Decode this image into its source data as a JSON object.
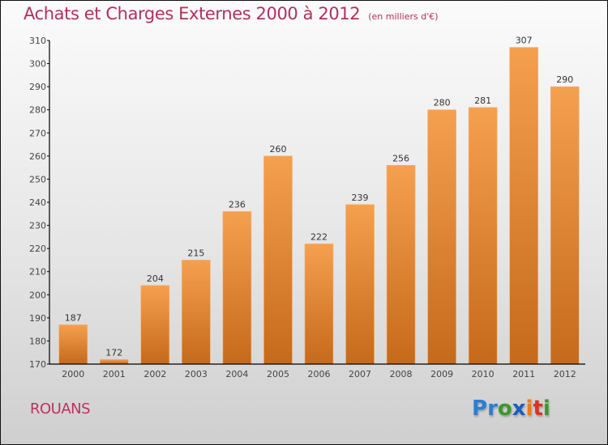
{
  "chart_data": {
    "type": "bar",
    "title": "Achats et Charges Externes 2000 à 2012",
    "subtitle": "(en milliers d'€)",
    "xlabel": "",
    "ylabel": "",
    "categories": [
      "2000",
      "2001",
      "2002",
      "2003",
      "2004",
      "2005",
      "2006",
      "2007",
      "2008",
      "2009",
      "2010",
      "2011",
      "2012"
    ],
    "values": [
      187,
      172,
      204,
      215,
      236,
      260,
      222,
      239,
      256,
      280,
      281,
      307,
      290
    ],
    "ylim": [
      170,
      310
    ],
    "yticks": [
      170,
      180,
      190,
      200,
      210,
      220,
      230,
      240,
      250,
      260,
      270,
      280,
      290,
      300,
      310
    ],
    "grid": false,
    "legend": "none",
    "bar_color_top": "#f5a04f",
    "bar_color_bottom": "#c56a1a"
  },
  "footer": {
    "commune": "ROUANS",
    "logo": [
      {
        "char": "P",
        "color": "#2a7fd4"
      },
      {
        "char": "r",
        "color": "#2a7fd4"
      },
      {
        "char": "o",
        "color": "#3a9a2a"
      },
      {
        "char": "x",
        "color": "#1a5fc0"
      },
      {
        "char": "i",
        "color": "#f07a10"
      },
      {
        "char": "t",
        "color": "#e03020"
      },
      {
        "char": "i",
        "color": "#3a9a2a"
      }
    ]
  }
}
